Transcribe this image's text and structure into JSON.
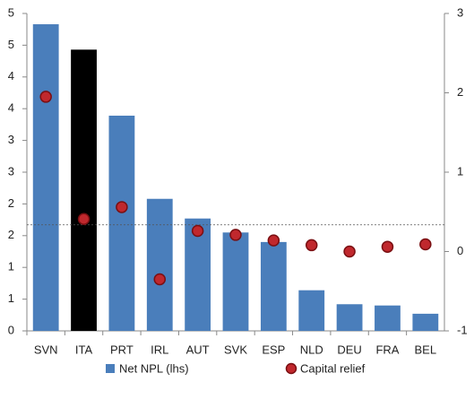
{
  "chart_data": {
    "type": "combo",
    "categories": [
      "SVN",
      "ITA",
      "PRT",
      "IRL",
      "AUT",
      "SVK",
      "ESP",
      "NLD",
      "DEU",
      "FRA",
      "BEL"
    ],
    "series": [
      {
        "name": "Net NPL (lhs)",
        "type": "bar",
        "axis": "y",
        "color": "#4a7ebb",
        "colors": [
          "#4a7ebb",
          "#000000",
          "#4a7ebb",
          "#4a7ebb",
          "#4a7ebb",
          "#4a7ebb",
          "#4a7ebb",
          "#4a7ebb",
          "#4a7ebb",
          "#4a7ebb",
          "#4a7ebb"
        ],
        "values": [
          4.83,
          4.43,
          3.39,
          2.08,
          1.77,
          1.55,
          1.4,
          0.64,
          0.42,
          0.4,
          0.27
        ]
      },
      {
        "name": "Capital relief",
        "type": "scatter",
        "axis": "y2",
        "color": "#c0282d",
        "values": [
          1.95,
          0.41,
          0.56,
          -0.35,
          0.26,
          0.21,
          0.14,
          0.08,
          0.0,
          0.06,
          0.09
        ]
      }
    ],
    "ylim": [
      0,
      5
    ],
    "yticks": [
      0,
      {
        "value": 0.5,
        "label": "1"
      },
      1,
      {
        "value": 1.5,
        "label": "2"
      },
      2,
      {
        "value": 2.5,
        "label": "3"
      },
      3,
      {
        "value": 3.5,
        "label": "4"
      },
      4,
      {
        "value": 4.5,
        "label": "5"
      },
      5
    ],
    "y2lim": [
      -1,
      3
    ],
    "y2ticks": [
      -1,
      0,
      1,
      2,
      3
    ],
    "reference_line": 1.67,
    "grid": false
  }
}
